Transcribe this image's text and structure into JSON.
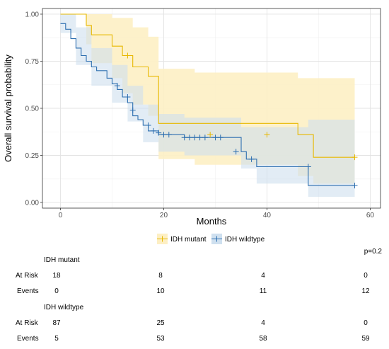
{
  "chart_data": {
    "type": "line",
    "xlabel": "Months",
    "ylabel": "Overall survival probability",
    "xlim": [
      -3.5,
      62
    ],
    "ylim": [
      -0.03,
      1.03
    ],
    "x_ticks": [
      0,
      20,
      40,
      60
    ],
    "y_ticks": [
      0,
      0.25,
      0.5,
      0.75,
      1.0
    ],
    "y_tick_labels": [
      "0.00",
      "0.25",
      "0.50",
      "0.75",
      "1.00"
    ],
    "grid": true,
    "legend_position": "bottom",
    "p_value": "p=0.2",
    "series": [
      {
        "name": "IDH mutant",
        "color": "#E7B800",
        "fill": "#FDEFC4",
        "steps": [
          [
            0,
            1.0
          ],
          [
            5,
            1.0
          ],
          [
            5,
            0.94
          ],
          [
            6,
            0.94
          ],
          [
            6,
            0.89
          ],
          [
            10,
            0.89
          ],
          [
            10,
            0.83
          ],
          [
            12,
            0.83
          ],
          [
            12,
            0.78
          ],
          [
            14,
            0.78
          ],
          [
            14,
            0.72
          ],
          [
            17,
            0.72
          ],
          [
            17,
            0.67
          ],
          [
            19,
            0.67
          ],
          [
            19,
            0.42
          ],
          [
            46,
            0.42
          ],
          [
            46,
            0.36
          ],
          [
            49,
            0.36
          ],
          [
            49,
            0.24
          ],
          [
            57,
            0.24
          ]
        ],
        "censor": [
          [
            13,
            0.78
          ],
          [
            29,
            0.36
          ],
          [
            40,
            0.36
          ],
          [
            57,
            0.24
          ]
        ],
        "ci_upper": [
          [
            0,
            1.0
          ],
          [
            5,
            1.0
          ],
          [
            5,
            1.0
          ],
          [
            10,
            1.0
          ],
          [
            10,
            0.98
          ],
          [
            14,
            0.98
          ],
          [
            14,
            0.93
          ],
          [
            17,
            0.93
          ],
          [
            17,
            0.88
          ],
          [
            19,
            0.88
          ],
          [
            19,
            0.71
          ],
          [
            26,
            0.71
          ],
          [
            26,
            0.69
          ],
          [
            46,
            0.69
          ],
          [
            46,
            0.66
          ],
          [
            57,
            0.66
          ]
        ],
        "ci_lower": [
          [
            0,
            1.0
          ],
          [
            5,
            1.0
          ],
          [
            5,
            0.84
          ],
          [
            6,
            0.84
          ],
          [
            6,
            0.74
          ],
          [
            10,
            0.74
          ],
          [
            10,
            0.66
          ],
          [
            12,
            0.66
          ],
          [
            12,
            0.58
          ],
          [
            14,
            0.58
          ],
          [
            14,
            0.52
          ],
          [
            17,
            0.52
          ],
          [
            17,
            0.46
          ],
          [
            19,
            0.46
          ],
          [
            19,
            0.23
          ],
          [
            26,
            0.23
          ],
          [
            26,
            0.2
          ],
          [
            46,
            0.2
          ],
          [
            46,
            0.14
          ],
          [
            49,
            0.14
          ],
          [
            49,
            0.1
          ],
          [
            57,
            0.1
          ]
        ]
      },
      {
        "name": "IDH wildtype",
        "color": "#2E6FB0",
        "fill": "#CFE0EF",
        "steps": [
          [
            0,
            0.95
          ],
          [
            1,
            0.95
          ],
          [
            1,
            0.92
          ],
          [
            2,
            0.92
          ],
          [
            2,
            0.87
          ],
          [
            3,
            0.87
          ],
          [
            3,
            0.82
          ],
          [
            4,
            0.82
          ],
          [
            4,
            0.78
          ],
          [
            5,
            0.78
          ],
          [
            5,
            0.75
          ],
          [
            6,
            0.75
          ],
          [
            6,
            0.72
          ],
          [
            7,
            0.72
          ],
          [
            7,
            0.7
          ],
          [
            9,
            0.7
          ],
          [
            9,
            0.66
          ],
          [
            10,
            0.66
          ],
          [
            10,
            0.63
          ],
          [
            11,
            0.63
          ],
          [
            11,
            0.6
          ],
          [
            12,
            0.6
          ],
          [
            12,
            0.56
          ],
          [
            13,
            0.56
          ],
          [
            13,
            0.53
          ],
          [
            14,
            0.53
          ],
          [
            14,
            0.46
          ],
          [
            15,
            0.46
          ],
          [
            15,
            0.44
          ],
          [
            16,
            0.44
          ],
          [
            16,
            0.41
          ],
          [
            17,
            0.41
          ],
          [
            17,
            0.38
          ],
          [
            19,
            0.38
          ],
          [
            19,
            0.36
          ],
          [
            24,
            0.36
          ],
          [
            24,
            0.345
          ],
          [
            35,
            0.345
          ],
          [
            35,
            0.27
          ],
          [
            36,
            0.27
          ],
          [
            36,
            0.23
          ],
          [
            38,
            0.23
          ],
          [
            38,
            0.19
          ],
          [
            48,
            0.19
          ],
          [
            48,
            0.09
          ],
          [
            57,
            0.09
          ]
        ],
        "censor": [
          [
            11,
            0.62
          ],
          [
            13,
            0.56
          ],
          [
            14,
            0.49
          ],
          [
            17,
            0.41
          ],
          [
            18,
            0.38
          ],
          [
            19,
            0.37
          ],
          [
            20,
            0.36
          ],
          [
            21,
            0.36
          ],
          [
            24,
            0.345
          ],
          [
            25,
            0.345
          ],
          [
            26,
            0.345
          ],
          [
            27,
            0.345
          ],
          [
            28,
            0.345
          ],
          [
            30,
            0.345
          ],
          [
            31,
            0.345
          ],
          [
            34,
            0.27
          ],
          [
            37,
            0.23
          ],
          [
            48,
            0.19
          ],
          [
            57,
            0.09
          ]
        ],
        "ci_upper": [
          [
            0,
            1.0
          ],
          [
            3,
            1.0
          ],
          [
            3,
            0.93
          ],
          [
            6,
            0.93
          ],
          [
            6,
            0.82
          ],
          [
            10,
            0.82
          ],
          [
            10,
            0.73
          ],
          [
            13,
            0.73
          ],
          [
            13,
            0.62
          ],
          [
            16,
            0.62
          ],
          [
            16,
            0.52
          ],
          [
            19,
            0.52
          ],
          [
            19,
            0.47
          ],
          [
            24,
            0.47
          ],
          [
            24,
            0.45
          ],
          [
            35,
            0.45
          ],
          [
            35,
            0.4
          ],
          [
            48,
            0.4
          ],
          [
            48,
            0.44
          ],
          [
            57,
            0.44
          ]
        ],
        "ci_lower": [
          [
            0,
            0.9
          ],
          [
            3,
            0.9
          ],
          [
            3,
            0.73
          ],
          [
            6,
            0.73
          ],
          [
            6,
            0.62
          ],
          [
            10,
            0.62
          ],
          [
            10,
            0.53
          ],
          [
            13,
            0.53
          ],
          [
            13,
            0.43
          ],
          [
            16,
            0.43
          ],
          [
            16,
            0.32
          ],
          [
            19,
            0.32
          ],
          [
            19,
            0.27
          ],
          [
            24,
            0.27
          ],
          [
            24,
            0.25
          ],
          [
            35,
            0.25
          ],
          [
            35,
            0.18
          ],
          [
            38,
            0.18
          ],
          [
            38,
            0.1
          ],
          [
            48,
            0.1
          ],
          [
            48,
            0.03
          ],
          [
            57,
            0.03
          ]
        ]
      }
    ]
  },
  "risk_table": {
    "groups": [
      {
        "name": "IDH mutant",
        "rows": [
          {
            "label": "At Risk",
            "values": [
              "18",
              "8",
              "4",
              "0"
            ]
          },
          {
            "label": "Events",
            "values": [
              "0",
              "10",
              "11",
              "12"
            ]
          }
        ]
      },
      {
        "name": "IDH wildtype",
        "rows": [
          {
            "label": "At Risk",
            "values": [
              "87",
              "25",
              "4",
              "0"
            ]
          },
          {
            "label": "Events",
            "values": [
              "5",
              "53",
              "58",
              "59"
            ]
          }
        ]
      }
    ]
  }
}
